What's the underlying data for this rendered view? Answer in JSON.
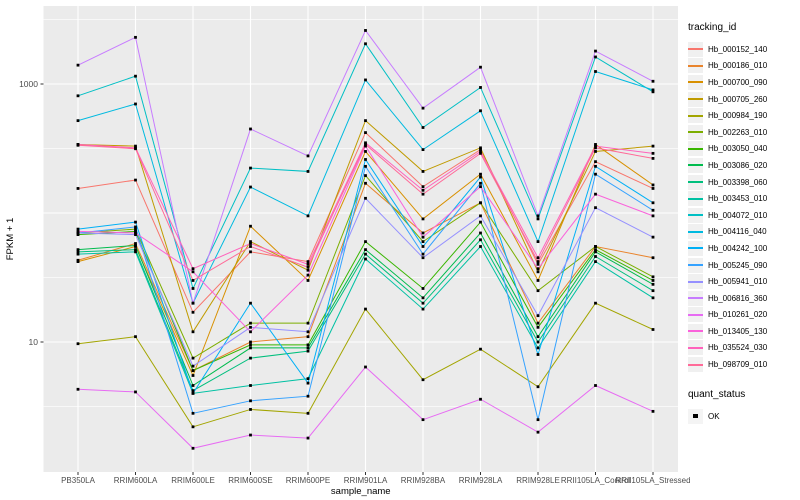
{
  "axes": {
    "y_label": "FPKM + 1",
    "x_label": "sample_name"
  },
  "legend": {
    "tracking_title": "tracking_id",
    "quant_title": "quant_status",
    "quant_items": [
      {
        "label": "OK",
        "marker": "black-square"
      }
    ]
  },
  "colors": {
    "panel_bg": "#EBEBEB",
    "gridline": "#FFFFFF",
    "tick_text": "#4D4D4D",
    "axis_title_text": "#000000",
    "point": "#000000",
    "legend_key_bg": "#F0F0F0"
  },
  "chart_data": {
    "type": "line",
    "title": "",
    "xlabel": "sample_name",
    "ylabel": "FPKM + 1",
    "yscale": "log10",
    "ylim": [
      1,
      3700
    ],
    "grid": "on",
    "legend_position": "right",
    "point_marker": "square",
    "point_color": "#000000",
    "y_ticks": [
      {
        "label": "1000",
        "value": 1000
      },
      {
        "label": "10",
        "value": 10
      }
    ],
    "grid_major": [
      10,
      100,
      1000
    ],
    "grid_minor": [
      3.16,
      31.6,
      316,
      3160
    ],
    "categories": [
      "PB350LA",
      "RRIM600LA",
      "RRIM600LE",
      "RRIM600SE",
      "RRIM600PE",
      "RRIM901LA",
      "RRIM928BA",
      "RRIM928LA",
      "RRIM928LE",
      "RRII105LA_Control",
      "RRII105LA_Stressed"
    ],
    "series": [
      {
        "name": "Hb_000152_140",
        "color": "#F8766D",
        "values": [
          155,
          180,
          17,
          50,
          42,
          420,
          160,
          310,
          40,
          250,
          155
        ]
      },
      {
        "name": "Hb_000186_010",
        "color": "#E9842C",
        "values": [
          43,
          58,
          6,
          10,
          11,
          170,
          70,
          120,
          14,
          55,
          45
        ]
      },
      {
        "name": "Hb_000700_090",
        "color": "#D89000",
        "values": [
          42,
          55,
          5.5,
          79,
          30,
          300,
          90,
          200,
          30,
          340,
          165
        ]
      },
      {
        "name": "Hb_000705_260",
        "color": "#C09B00",
        "values": [
          340,
          330,
          12,
          60,
          36,
          520,
          210,
          320,
          35,
          300,
          330
        ]
      },
      {
        "name": "Hb_000984_190",
        "color": "#A3A500",
        "values": [
          9.7,
          11,
          2.2,
          3,
          2.8,
          18,
          5.1,
          8.8,
          4.5,
          20,
          12.5
        ]
      },
      {
        "name": "Hb_002263_010",
        "color": "#7CAE00",
        "values": [
          70,
          75,
          7.5,
          14,
          14,
          195,
          60,
          120,
          25,
          55,
          32
        ]
      },
      {
        "name": "Hb_003050_040",
        "color": "#39B600",
        "values": [
          68,
          72,
          6,
          9.5,
          9.5,
          60,
          26,
          85,
          13,
          52,
          30
        ]
      },
      {
        "name": "Hb_003086_020",
        "color": "#00BB4E",
        "values": [
          52,
          56,
          4.6,
          9,
          9,
          52,
          22,
          70,
          11,
          50,
          28
        ]
      },
      {
        "name": "Hb_003398_060",
        "color": "#00BF7D",
        "values": [
          50,
          52,
          4.2,
          7.5,
          8.5,
          48,
          20,
          62,
          10,
          46,
          25
        ]
      },
      {
        "name": "Hb_003453_010",
        "color": "#00C1A3",
        "values": [
          48,
          50,
          4,
          4.6,
          5.2,
          44,
          18,
          55,
          9,
          42,
          22
        ]
      },
      {
        "name": "Hb_004072_010",
        "color": "#00BFC4",
        "values": [
          810,
          1150,
          26,
          223,
          210,
          2050,
          460,
          940,
          90,
          1620,
          870
        ]
      },
      {
        "name": "Hb_004116_040",
        "color": "#00BAE0",
        "values": [
          520,
          700,
          20,
          159,
          95,
          1075,
          310,
          620,
          60,
          1250,
          900
        ]
      },
      {
        "name": "Hb_004242_100",
        "color": "#00B0F6",
        "values": [
          75,
          85,
          4,
          20,
          4.8,
          260,
          55,
          190,
          8,
          230,
          120
        ]
      },
      {
        "name": "Hb_005245_090",
        "color": "#35A2FF",
        "values": [
          70,
          78,
          2.8,
          3.5,
          3.8,
          230,
          48,
          170,
          2.5,
          200,
          105
        ]
      },
      {
        "name": "Hb_005941_010",
        "color": "#9590FF",
        "values": [
          70,
          68,
          6.5,
          13,
          12,
          130,
          45,
          95,
          16,
          110,
          65
        ]
      },
      {
        "name": "Hb_006816_360",
        "color": "#C77CFF",
        "values": [
          1400,
          2300,
          20,
          448,
          277,
          2600,
          650,
          1350,
          95,
          1800,
          1050
        ]
      },
      {
        "name": "Hb_010261_020",
        "color": "#E76BF3",
        "values": [
          4.3,
          4.1,
          1.5,
          1.9,
          1.8,
          6.4,
          2.5,
          3.6,
          2.0,
          4.6,
          2.9
        ]
      },
      {
        "name": "Hb_013405_130",
        "color": "#FA62DB",
        "values": [
          72,
          70,
          35,
          12,
          33,
          330,
          65,
          160,
          37,
          140,
          95
        ]
      },
      {
        "name": "Hb_035524_030",
        "color": "#FF62BC",
        "values": [
          340,
          320,
          37,
          58,
          40,
          350,
          150,
          300,
          45,
          330,
          290
        ]
      },
      {
        "name": "Hb_098709_010",
        "color": "#FF6A98",
        "values": [
          335,
          315,
          30,
          55,
          38,
          340,
          140,
          290,
          42,
          320,
          265
        ]
      }
    ]
  }
}
